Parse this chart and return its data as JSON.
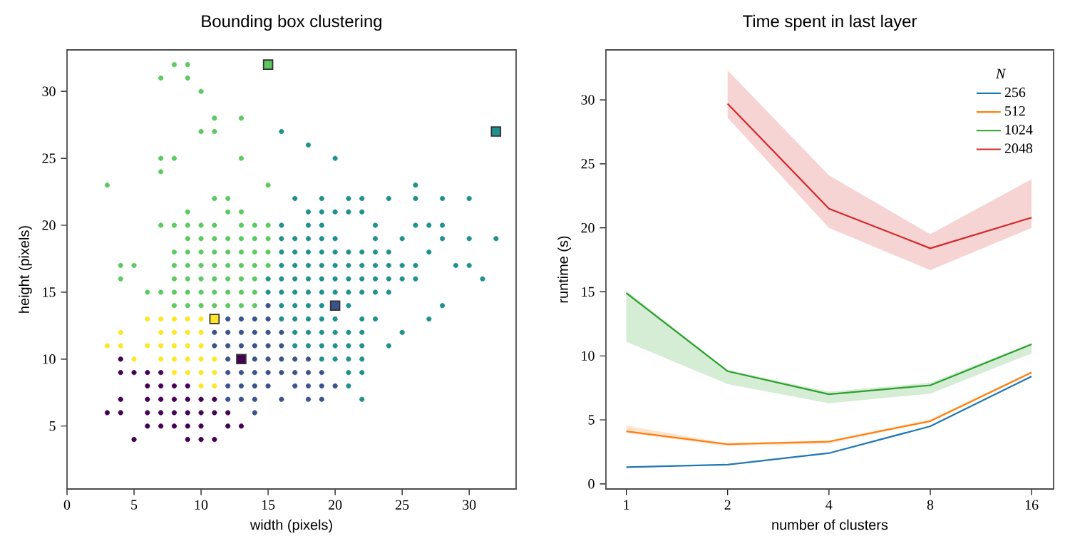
{
  "chart_data": [
    {
      "type": "scatter",
      "title": "Bounding box clustering",
      "xlabel": "width (pixels)",
      "ylabel": "height (pixels)",
      "xlim": [
        0,
        33.5
      ],
      "ylim": [
        0.3,
        33.1
      ],
      "xticks": [
        0,
        5,
        10,
        15,
        20,
        25,
        30
      ],
      "yticks": [
        5,
        10,
        15,
        20,
        25,
        30
      ],
      "marker": "circle",
      "legend": false,
      "series": [
        {
          "color": "#440154",
          "x": [
            4,
            4,
            5,
            6,
            7,
            6,
            7,
            8,
            9,
            4,
            6,
            7,
            8,
            9,
            10,
            11,
            3,
            4,
            6,
            7,
            8,
            9,
            10,
            11,
            12,
            6,
            7,
            8,
            9,
            10,
            12,
            13,
            5,
            9,
            10,
            11
          ],
          "values": [
            10,
            9,
            9,
            9,
            9,
            8,
            8,
            8,
            8,
            7,
            7,
            7,
            7,
            7,
            7,
            7,
            6,
            6,
            6,
            6,
            6,
            6,
            6,
            6,
            6,
            5,
            5,
            5,
            5,
            5,
            5,
            5,
            4,
            4,
            4,
            4
          ]
        },
        {
          "color": "#3b528b",
          "x": [
            15,
            12,
            13,
            14,
            15,
            11,
            12,
            13,
            14,
            15,
            16,
            11,
            12,
            13,
            14,
            15,
            16,
            12,
            14,
            15,
            16,
            17,
            18,
            12,
            13,
            14,
            15,
            16,
            17,
            18,
            19,
            12,
            13,
            14,
            15,
            17,
            18,
            19,
            20,
            12,
            13,
            14,
            16,
            18,
            19,
            14
          ],
          "values": [
            14,
            13,
            13,
            13,
            13,
            12,
            12,
            12,
            12,
            12,
            12,
            11,
            11,
            11,
            11,
            11,
            11,
            10,
            10,
            10,
            10,
            10,
            10,
            9,
            9,
            9,
            9,
            9,
            9,
            9,
            9,
            8,
            8,
            8,
            8,
            8,
            8,
            8,
            8,
            7,
            7,
            7,
            7,
            7,
            7,
            6
          ]
        },
        {
          "color": "#21918c",
          "x": [
            16,
            18,
            20,
            26,
            17,
            19,
            21,
            22,
            24,
            26,
            28,
            30,
            18,
            19,
            20,
            21,
            22,
            16,
            18,
            19,
            23,
            26,
            27,
            28,
            16,
            17,
            18,
            19,
            20,
            23,
            25,
            28,
            30,
            32,
            16,
            17,
            18,
            19,
            20,
            21,
            22,
            23,
            24,
            27,
            16,
            17,
            18,
            19,
            20,
            21,
            22,
            23,
            24,
            25,
            26,
            29,
            30,
            15,
            16,
            17,
            18,
            19,
            20,
            21,
            22,
            23,
            24,
            25,
            26,
            31,
            15,
            16,
            17,
            18,
            19,
            20,
            21,
            22,
            23,
            24,
            16,
            17,
            18,
            19,
            21,
            28,
            16,
            17,
            18,
            19,
            20,
            22,
            23,
            27,
            17,
            18,
            19,
            20,
            21,
            22,
            25,
            17,
            18,
            19,
            20,
            21,
            22,
            24,
            19,
            20,
            21,
            22,
            21,
            22,
            21,
            22
          ],
          "values": [
            27,
            26,
            25,
            23,
            22,
            22,
            22,
            22,
            22,
            22,
            22,
            22,
            21,
            21,
            21,
            21,
            21,
            20,
            20,
            20,
            20,
            20,
            20,
            20,
            19,
            19,
            19,
            19,
            19,
            19,
            19,
            19,
            19,
            19,
            18,
            18,
            18,
            18,
            18,
            18,
            18,
            18,
            18,
            18,
            17,
            17,
            17,
            17,
            17,
            17,
            17,
            17,
            17,
            17,
            17,
            17,
            17,
            16,
            16,
            16,
            16,
            16,
            16,
            16,
            16,
            16,
            16,
            16,
            16,
            16,
            15,
            15,
            15,
            15,
            15,
            15,
            15,
            15,
            15,
            15,
            14,
            14,
            14,
            14,
            14,
            14,
            13,
            13,
            13,
            13,
            13,
            13,
            13,
            13,
            12,
            12,
            12,
            12,
            12,
            12,
            12,
            11,
            11,
            11,
            11,
            11,
            11,
            11,
            10,
            10,
            10,
            10,
            9,
            9,
            8,
            7
          ]
        },
        {
          "color": "#5ec962",
          "x": [
            8,
            9,
            7,
            9,
            10,
            11,
            13,
            10,
            11,
            7,
            8,
            13,
            7,
            3,
            15,
            11,
            12,
            9,
            12,
            13,
            7,
            8,
            9,
            10,
            11,
            13,
            14,
            15,
            9,
            10,
            11,
            12,
            13,
            14,
            15,
            8,
            9,
            10,
            11,
            12,
            13,
            14,
            15,
            4,
            5,
            8,
            9,
            10,
            11,
            12,
            13,
            14,
            15,
            4,
            8,
            9,
            10,
            11,
            12,
            13,
            14,
            6,
            7,
            8,
            9,
            10,
            11,
            12,
            13,
            14,
            8,
            9,
            10,
            11,
            12,
            13,
            14
          ],
          "values": [
            32,
            32,
            31,
            31,
            30,
            28,
            28,
            27,
            27,
            25,
            25,
            25,
            24,
            23,
            23,
            22,
            22,
            21,
            21,
            21,
            20,
            20,
            20,
            20,
            20,
            20,
            20,
            20,
            19,
            19,
            19,
            19,
            19,
            19,
            19,
            18,
            18,
            18,
            18,
            18,
            18,
            18,
            18,
            17,
            17,
            17,
            17,
            17,
            17,
            17,
            17,
            17,
            17,
            16,
            16,
            16,
            16,
            16,
            16,
            16,
            16,
            15,
            15,
            15,
            15,
            15,
            15,
            15,
            15,
            15,
            14,
            14,
            14,
            14,
            14,
            14,
            14
          ]
        },
        {
          "color": "#fde725",
          "x": [
            6,
            7,
            8,
            9,
            10,
            4,
            7,
            8,
            9,
            10,
            3,
            4,
            6,
            7,
            8,
            9,
            10,
            5,
            7,
            8,
            9,
            10,
            11,
            8,
            9,
            10,
            11,
            10,
            11
          ],
          "values": [
            13,
            13,
            13,
            13,
            13,
            12,
            12,
            12,
            12,
            12,
            11,
            11,
            11,
            11,
            11,
            11,
            11,
            10,
            10,
            10,
            10,
            10,
            10,
            9,
            9,
            9,
            9,
            8,
            8
          ]
        },
        {
          "marker": "square",
          "x": [
            13,
            20,
            32,
            15,
            11
          ],
          "values": [
            10,
            14,
            27,
            32,
            13
          ],
          "colors": [
            "#440154",
            "#3b528b",
            "#21918c",
            "#5ec962",
            "#fde725"
          ]
        }
      ]
    },
    {
      "type": "line",
      "title": "Time spent in last layer",
      "xlabel": "number of clusters",
      "ylabel": "runtime (s)",
      "log": "x",
      "xlim": [
        0.87,
        18.6
      ],
      "ylim": [
        -0.4,
        33.9
      ],
      "xticks": [
        1,
        2,
        4,
        8,
        16
      ],
      "yticks": [
        0,
        5,
        10,
        15,
        20,
        25,
        30
      ],
      "legend": "top right",
      "legend_title": "N",
      "series": [
        {
          "name": "256",
          "color": "#1f77b4",
          "x": [
            1,
            2,
            4,
            8,
            16
          ],
          "values": [
            1.3,
            1.5,
            2.4,
            4.5,
            8.4
          ]
        },
        {
          "name": "512",
          "color": "#ff7f0e",
          "x": [
            1,
            2,
            4,
            8,
            16
          ],
          "values": [
            4.1,
            3.1,
            3.3,
            4.9,
            8.7
          ],
          "lower": [
            4.0,
            2.95,
            3.15,
            4.85,
            8.6
          ],
          "upper": [
            4.55,
            3.15,
            3.4,
            5.05,
            8.8
          ]
        },
        {
          "name": "1024",
          "color": "#2ca02c",
          "x": [
            1,
            2,
            4,
            8,
            16
          ],
          "values": [
            14.9,
            8.8,
            7.0,
            7.7,
            10.9
          ],
          "lower": [
            11.1,
            7.8,
            6.3,
            7.05,
            10.2
          ],
          "upper": [
            15.1,
            8.9,
            7.2,
            7.9,
            11.0
          ]
        },
        {
          "name": "2048",
          "color": "#d62728",
          "x": [
            2,
            4,
            8,
            16
          ],
          "values": [
            29.7,
            21.5,
            18.4,
            20.8
          ],
          "lower": [
            28.6,
            20.0,
            16.7,
            20.0
          ],
          "upper": [
            32.3,
            24.1,
            19.5,
            23.8
          ]
        }
      ]
    }
  ]
}
